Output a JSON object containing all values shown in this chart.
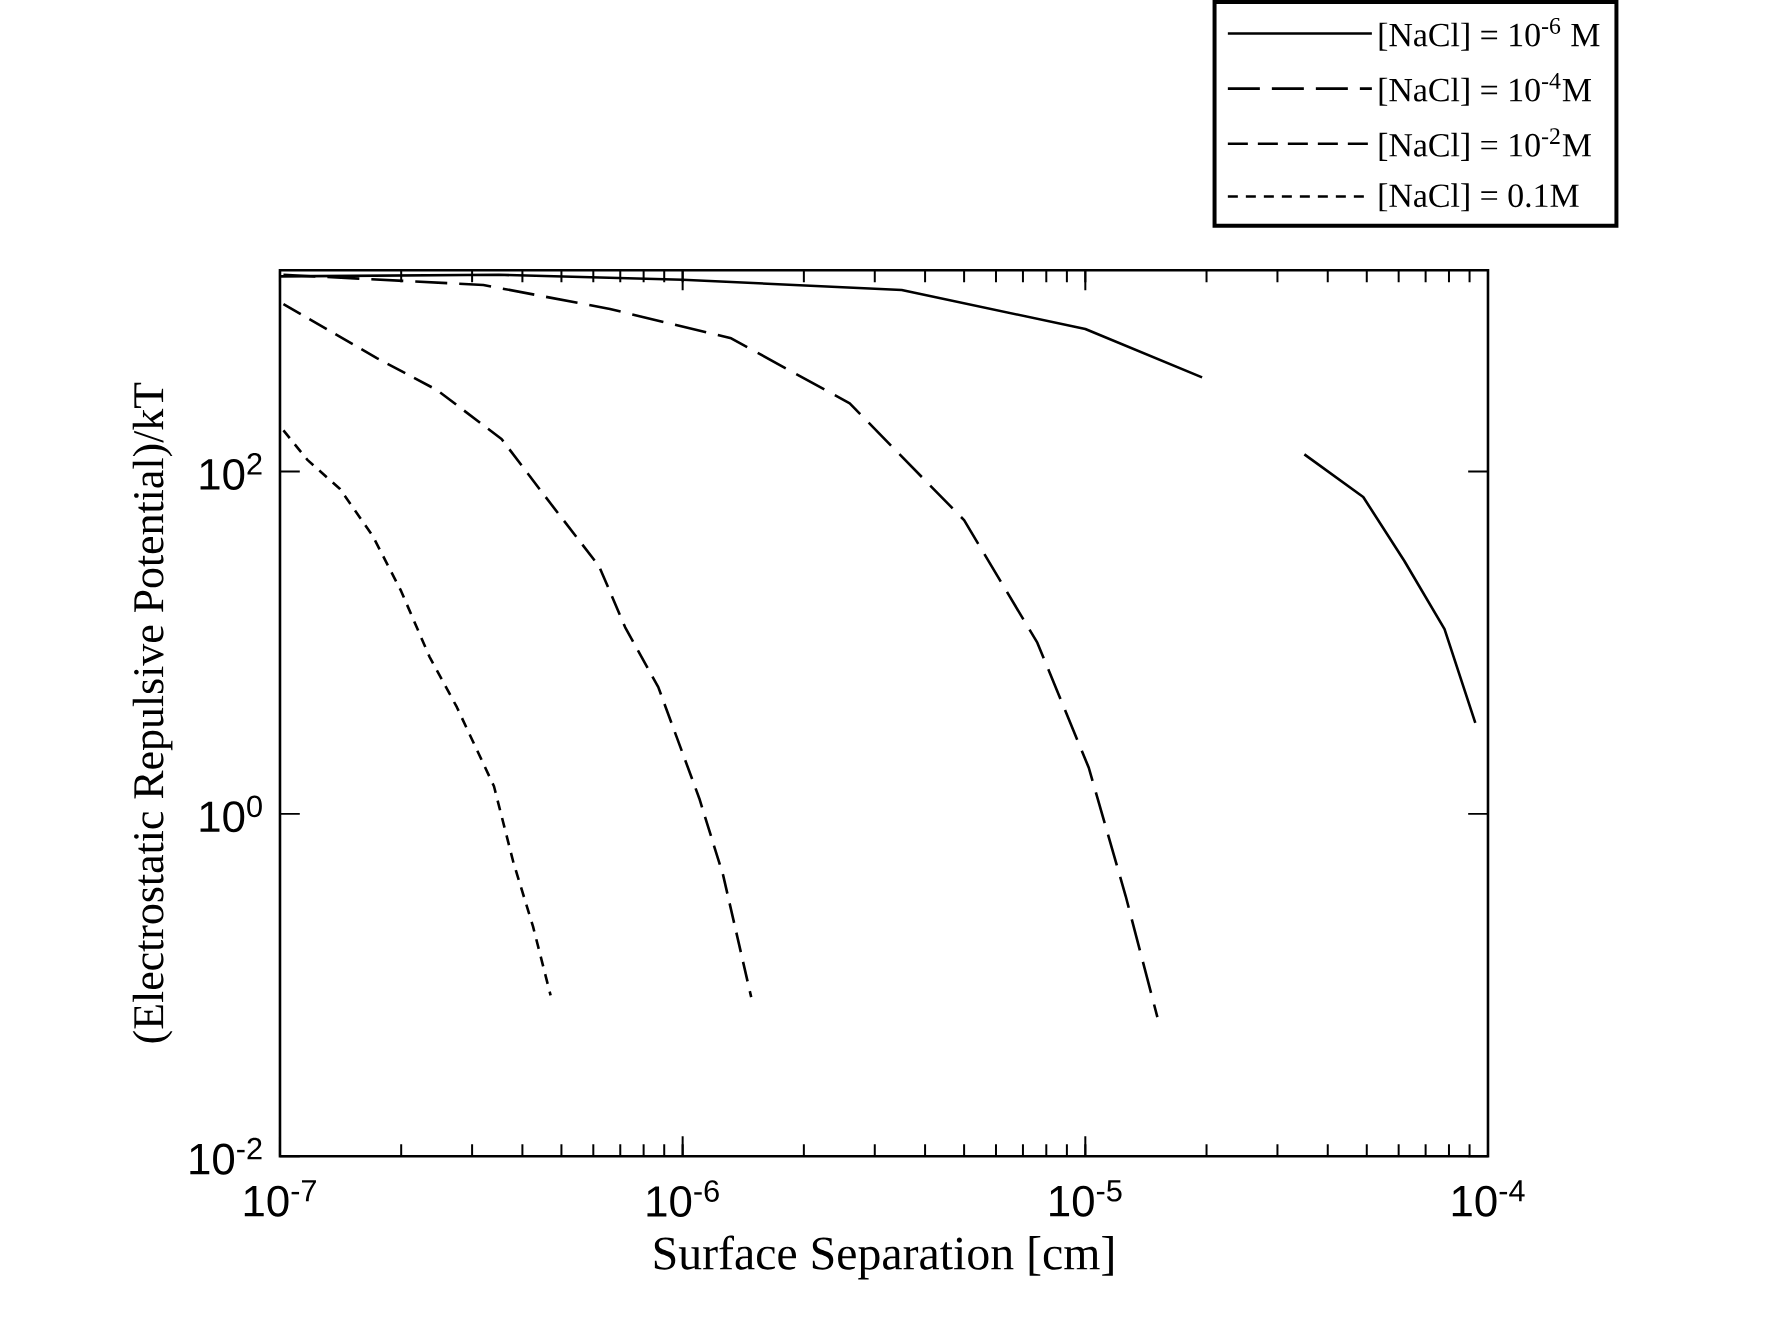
{
  "chart_data": {
    "type": "line",
    "xlabel": "Surface Separation [cm]",
    "ylabel": "(Electrostatic Repulsive Potential)/kT",
    "log": "xy",
    "xlim": [
      1e-07,
      0.0001
    ],
    "ylim": [
      0.01,
      1500
    ],
    "xticks": [
      {
        "value": 1e-07,
        "label": "10$^{-7}$"
      },
      {
        "value": 1e-06,
        "label": "10$^{-6}$"
      },
      {
        "value": 1e-05,
        "label": "10$^{-5}$"
      },
      {
        "value": 0.0001,
        "label": "10$^{-4}$"
      }
    ],
    "yticks": [
      {
        "value": 0.01,
        "label": "10$^{-2}$"
      },
      {
        "value": 1,
        "label": "10$^{0}$"
      },
      {
        "value": 100,
        "label": "10$^{2}$"
      }
    ],
    "legend": "top right",
    "grid": false,
    "marker": "none",
    "series": [
      {
        "name": "[NaCl] = 10$^{-6}$ M",
        "color": "#000000",
        "line_style": "solid",
        "x": [
          1e-07,
          3.5e-07,
          1e-06,
          3.5e-06,
          1e-05,
          1.95e-05,
          2.5e-05,
          3.5e-05,
          4.9e-05,
          6.2e-05,
          7.8e-05,
          9.3e-05
        ],
        "values": [
          1380,
          1410,
          1320,
          1150,
          680,
          355,
          null,
          126,
          71,
          30,
          12,
          3.4
        ]
      },
      {
        "name": "[NaCl] = 10$^{-4}$M",
        "color": "#000000",
        "line_style": "dashed",
        "x": [
          1.02e-07,
          3.2e-07,
          6.6e-07,
          1.32e-06,
          2.6e-06,
          5e-06,
          7.6e-06,
          1.02e-05,
          1.26e-05,
          1.51e-05
        ],
        "values": [
          1410,
          1230,
          890,
          600,
          250,
          52,
          10,
          1.86,
          0.33,
          0.065
        ]
      },
      {
        "name": "[NaCl] = 10$^{-2}$M",
        "color": "#000000",
        "line_style": "dashed",
        "x": [
          1.02e-07,
          1.74e-07,
          2.45e-07,
          3.55e-07,
          4.7e-07,
          6.2e-07,
          7.2e-07,
          8.7e-07,
          1.1e-06,
          1.26e-06,
          1.48e-06
        ],
        "values": [
          950,
          460,
          300,
          155,
          65,
          28,
          12.3,
          5.5,
          1.23,
          0.44,
          0.085
        ]
      },
      {
        "name": "[NaCl] = 0.1M",
        "color": "#000000",
        "line_style": "dotted",
        "x": [
          1.02e-07,
          1.17e-07,
          1.41e-07,
          1.7e-07,
          2e-07,
          2.35e-07,
          2.75e-07,
          3.4e-07,
          3.8e-07,
          4.25e-07,
          4.7e-07
        ],
        "values": [
          174,
          117,
          79,
          42,
          20,
          8.3,
          4.2,
          1.45,
          0.52,
          0.22,
          0.087
        ]
      }
    ]
  }
}
